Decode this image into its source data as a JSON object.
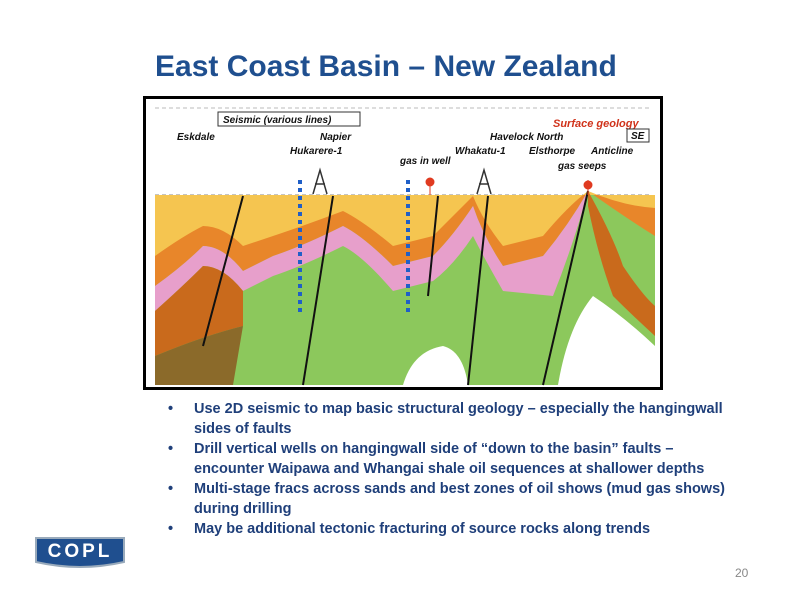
{
  "header": {
    "title": "East Coast Basin – New Zealand"
  },
  "figure": {
    "seismic_label": "Seismic (various lines)",
    "surface_geology": "Surface geology",
    "se": "SE",
    "eskdale": "Eskdale",
    "napier": "Napier",
    "hukarere": "Hukarere-1",
    "gas_in_well": "gas in well",
    "whakatu": "Whakatu-1",
    "havelock": "Havelock North",
    "elsthorpe": "Elsthorpe",
    "anticline": "Anticline",
    "gas_seeps": "gas seeps"
  },
  "bullets": [
    "Use 2D seismic to map basic structural geology – especially the hangingwall sides of faults",
    "Drill vertical wells on hangingwall side of “down to the basin” faults – encounter Waipawa and Whangai shale oil sequences at shallower depths",
    "Multi-stage fracs across sands and best zones of oil shows (mud gas shows) during drilling",
    "May be additional tectonic fracturing of source rocks along trends"
  ],
  "logo": "COPL",
  "page_number": "20"
}
